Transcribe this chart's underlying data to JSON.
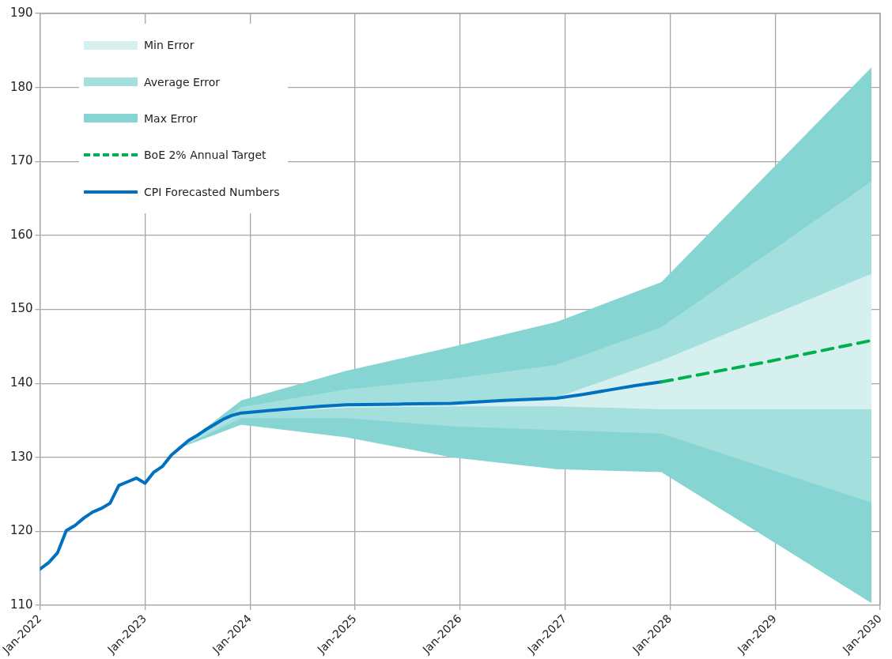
{
  "chart_data": {
    "type": "line",
    "xlim": [
      "2022-01",
      "2030-01"
    ],
    "xticks": [
      {
        "value": "2022-01",
        "label": "Jan-2022"
      },
      {
        "value": "2023-01",
        "label": "Jan-2023"
      },
      {
        "value": "2024-01",
        "label": "Jan-2024"
      },
      {
        "value": "2025-01",
        "label": "Jan-2025"
      },
      {
        "value": "2026-01",
        "label": "Jan-2026"
      },
      {
        "value": "2027-01",
        "label": "Jan-2027"
      },
      {
        "value": "2028-01",
        "label": "Jan-2028"
      },
      {
        "value": "2029-01",
        "label": "Jan-2029"
      },
      {
        "value": "2030-01",
        "label": "Jan-2030"
      }
    ],
    "ylim": [
      110,
      190
    ],
    "yticks": [
      110,
      120,
      130,
      140,
      150,
      160,
      170,
      180,
      190
    ],
    "grid": true,
    "legend": "top left",
    "marker": "none",
    "series": [
      {
        "name": "Min Error",
        "type": "area",
        "color": "#d6f0ef",
        "x": [
          "2023-05",
          "2023-12",
          "2024-12",
          "2025-12",
          "2026-12",
          "2027-12",
          "2029-12"
        ],
        "values": [
          null,
          null,
          null,
          null,
          null,
          null,
          null
        ],
        "lower": [
          131.3,
          135.9,
          136.7,
          136.9,
          136.9,
          136.5,
          136.5
        ],
        "upper": [
          131.3,
          136.0,
          137.2,
          137.4,
          138.1,
          143.1,
          154.8
        ]
      },
      {
        "name": "Average Error",
        "type": "area",
        "color": "#a3dfdd",
        "x": [
          "2023-05",
          "2023-12",
          "2024-12",
          "2025-12",
          "2026-12",
          "2027-12",
          "2029-12"
        ],
        "values": [
          null,
          null,
          null,
          null,
          null,
          null,
          null
        ],
        "lower": [
          131.3,
          135.3,
          135.3,
          134.2,
          133.7,
          133.2,
          123.9
        ],
        "upper": [
          131.3,
          136.8,
          139.2,
          140.6,
          142.5,
          147.6,
          167.3
        ]
      },
      {
        "name": "Max Error",
        "type": "area",
        "color": "#86d5d2",
        "x": [
          "2023-05",
          "2023-12",
          "2024-12",
          "2025-12",
          "2026-12",
          "2027-12",
          "2029-12"
        ],
        "values": [
          null,
          null,
          null,
          null,
          null,
          null,
          null
        ],
        "lower": [
          131.3,
          134.4,
          132.7,
          130.0,
          128.4,
          128.0,
          110.3
        ],
        "upper": [
          131.3,
          137.7,
          141.7,
          144.9,
          148.3,
          153.7,
          182.7
        ]
      },
      {
        "name": "BoE 2% Annual Target",
        "type": "line",
        "line_style": "dashed",
        "color": "#00b050",
        "x": [
          "2027-12",
          "2028-12",
          "2029-12"
        ],
        "values": [
          140.2,
          142.9,
          145.8
        ]
      },
      {
        "name": "CPI Forecasted Numbers",
        "type": "line",
        "line_style": "solid",
        "color": "#0070c0",
        "x": [
          "2022-01",
          "2022-02",
          "2022-03",
          "2022-04",
          "2022-05",
          "2022-06",
          "2022-07",
          "2022-08",
          "2022-09",
          "2022-10",
          "2022-11",
          "2022-12",
          "2023-01",
          "2023-02",
          "2023-03",
          "2023-04",
          "2023-05",
          "2023-06",
          "2023-07",
          "2023-08",
          "2023-09",
          "2023-10",
          "2023-11",
          "2023-12",
          "2024-03",
          "2024-06",
          "2024-09",
          "2024-12",
          "2025-06",
          "2025-12",
          "2026-06",
          "2026-12",
          "2027-03",
          "2027-06",
          "2027-09",
          "2027-12"
        ],
        "values": [
          114.9,
          115.8,
          117.1,
          120.1,
          120.8,
          121.8,
          122.6,
          123.1,
          123.8,
          126.2,
          126.7,
          127.2,
          126.5,
          128.0,
          128.8,
          130.3,
          131.3,
          132.3,
          133.0,
          133.8,
          134.5,
          135.2,
          135.7,
          136.0,
          136.3,
          136.6,
          136.9,
          137.1,
          137.2,
          137.3,
          137.7,
          138.0,
          138.5,
          139.1,
          139.7,
          140.2
        ]
      }
    ]
  }
}
